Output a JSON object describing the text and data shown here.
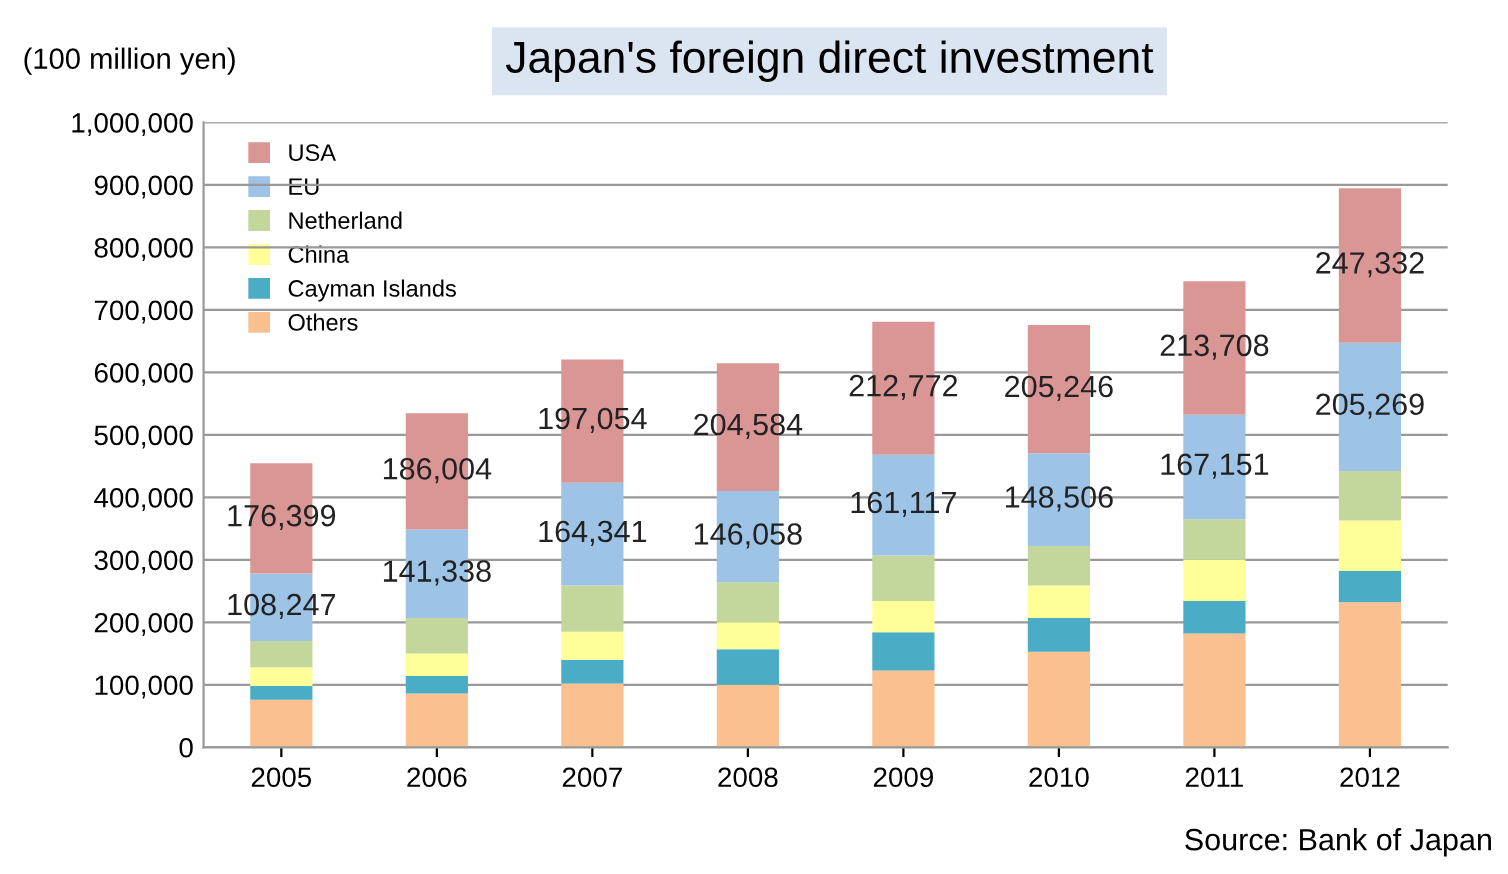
{
  "chart_data": {
    "type": "bar",
    "stacked": true,
    "title": "Japan's foreign direct investment",
    "ylabel": "(100 million yen)",
    "categories": [
      "2005",
      "2006",
      "2007",
      "2008",
      "2009",
      "2010",
      "2011",
      "2012"
    ],
    "series": [
      {
        "name": "Others",
        "color": "#fac090",
        "values": [
          76000,
          86000,
          102000,
          100000,
          123000,
          153000,
          182000,
          232000
        ]
      },
      {
        "name": "Cayman Islands",
        "color": "#4bacc6",
        "values": [
          22000,
          28000,
          38000,
          57000,
          61000,
          54000,
          52000,
          50000
        ]
      },
      {
        "name": "China",
        "color": "#ffff99",
        "values": [
          30000,
          36000,
          45000,
          43000,
          50000,
          52000,
          66000,
          81000
        ]
      },
      {
        "name": "Netherland",
        "color": "#c3d69b",
        "values": [
          42000,
          57000,
          74000,
          64000,
          73000,
          63000,
          65000,
          79000
        ]
      },
      {
        "name": "EU",
        "color": "#9dc3e6",
        "values": [
          108247,
          141338,
          164341,
          146058,
          161117,
          148506,
          167151,
          205269
        ],
        "value_labels": [
          "108,247",
          "141,338",
          "164,341",
          "146,058",
          "161,117",
          "148,506",
          "167,151",
          "205,269"
        ]
      },
      {
        "name": "USA",
        "color": "#d99694",
        "values": [
          176399,
          186004,
          197054,
          204584,
          212772,
          205246,
          213708,
          247332
        ],
        "value_labels": [
          "176,399",
          "186,004",
          "197,054",
          "204,584",
          "212,772",
          "205,246",
          "213,708",
          "247,332"
        ]
      }
    ],
    "ylim": [
      0,
      1000000
    ],
    "yticks": [
      0,
      {
        "value": 100000,
        "label": "100,000"
      },
      {
        "value": 200000,
        "label": "200,000"
      },
      {
        "value": 300000,
        "label": "300,000"
      },
      {
        "value": 400000,
        "label": "400,000"
      },
      {
        "value": 500000,
        "label": "500,000"
      },
      {
        "value": 600000,
        "label": "600,000"
      },
      {
        "value": 700000,
        "label": "700,000"
      },
      {
        "value": 800000,
        "label": "800,000"
      },
      {
        "value": 900000,
        "label": "900,000"
      },
      {
        "value": 1000000,
        "label": "1,000,000"
      }
    ],
    "grid": "y",
    "legend": "top left",
    "annotations": [
      "Source: Bank of Japan"
    ]
  }
}
